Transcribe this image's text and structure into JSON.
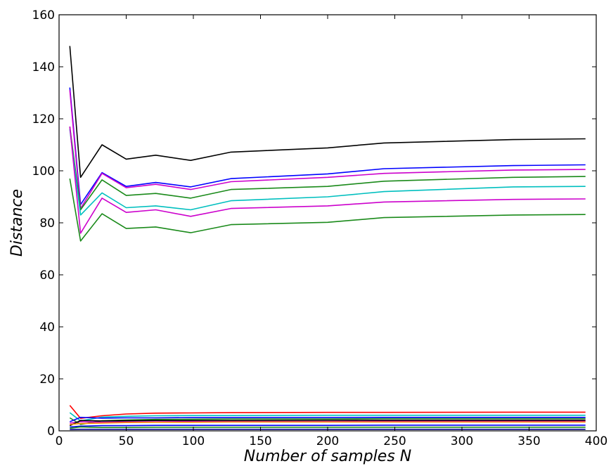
{
  "chart_data": {
    "type": "line",
    "title": "",
    "xlabel": "Number of samples N",
    "ylabel": "Distance",
    "xlim": [
      0,
      400
    ],
    "ylim": [
      0,
      160
    ],
    "xticks": [
      0,
      50,
      100,
      150,
      200,
      250,
      300,
      350,
      400
    ],
    "yticks": [
      0,
      20,
      40,
      60,
      80,
      100,
      120,
      140,
      160
    ],
    "grid": false,
    "legend": "none",
    "x": [
      8,
      16,
      32,
      50,
      72,
      98,
      128,
      200,
      242,
      338,
      392
    ],
    "series": [
      {
        "color": "#000000",
        "values": [
          148.0,
          97.5,
          110.0,
          104.5,
          106.0,
          104.0,
          107.2,
          108.8,
          110.7,
          112.0,
          112.3
        ]
      },
      {
        "color": "#0000ff",
        "values": [
          132.0,
          87.0,
          99.3,
          94.0,
          95.5,
          93.8,
          97.0,
          98.8,
          100.8,
          102.0,
          102.3
        ]
      },
      {
        "color": "#cc00cc",
        "values": [
          131.0,
          85.5,
          99.0,
          93.5,
          94.8,
          92.8,
          95.8,
          97.5,
          99.0,
          100.3,
          100.5
        ]
      },
      {
        "color": "#1a8a1a",
        "values": [
          117.0,
          85.0,
          96.5,
          90.5,
          91.3,
          89.5,
          92.8,
          94.0,
          96.0,
          97.5,
          97.8
        ]
      },
      {
        "color": "#00bfbf",
        "values": [
          116.0,
          83.0,
          91.5,
          85.8,
          86.5,
          85.0,
          88.5,
          90.0,
          92.0,
          93.8,
          94.0
        ]
      },
      {
        "color": "#cc00cc",
        "values": [
          117.0,
          76.0,
          89.5,
          84.0,
          85.0,
          82.5,
          85.5,
          86.5,
          88.0,
          89.0,
          89.2
        ]
      },
      {
        "color": "#1a8a1a",
        "values": [
          97.0,
          73.0,
          83.5,
          77.8,
          78.4,
          76.2,
          79.3,
          80.2,
          82.0,
          83.0,
          83.2
        ]
      },
      {
        "color": "#ff0000",
        "values": [
          9.8,
          4.8,
          5.8,
          6.5,
          6.8,
          6.9,
          7.0,
          7.1,
          7.1,
          7.2,
          7.2
        ]
      },
      {
        "color": "#00bfbf",
        "values": [
          7.0,
          3.8,
          5.3,
          5.6,
          5.8,
          5.9,
          5.9,
          6.0,
          6.0,
          6.0,
          6.0
        ]
      },
      {
        "color": "#1a8a1a",
        "values": [
          5.0,
          2.5,
          3.9,
          4.2,
          4.4,
          4.5,
          4.6,
          4.6,
          4.7,
          4.7,
          4.7
        ]
      },
      {
        "color": "#0000ff",
        "values": [
          3.5,
          5.2,
          4.9,
          5.0,
          5.0,
          5.1,
          5.1,
          5.1,
          5.2,
          5.2,
          5.2
        ]
      },
      {
        "color": "#cc00cc",
        "values": [
          3.0,
          3.5,
          3.3,
          3.5,
          3.5,
          3.6,
          3.6,
          3.6,
          3.7,
          3.7,
          3.7
        ]
      },
      {
        "color": "#000000",
        "values": [
          2.0,
          4.0,
          3.8,
          3.9,
          4.0,
          4.0,
          4.0,
          4.1,
          4.1,
          4.1,
          4.1
        ]
      },
      {
        "color": "#ff8c00",
        "values": [
          2.5,
          2.8,
          3.0,
          3.2,
          3.3,
          3.3,
          3.4,
          3.4,
          3.4,
          3.4,
          3.4
        ]
      },
      {
        "color": "#0000ff",
        "values": [
          1.5,
          1.8,
          2.0,
          2.0,
          2.1,
          2.1,
          2.1,
          2.1,
          2.2,
          2.2,
          2.2
        ]
      },
      {
        "color": "#1a8a1a",
        "values": [
          1.0,
          1.5,
          1.3,
          1.3,
          1.4,
          1.4,
          1.4,
          1.4,
          1.4,
          1.4,
          1.4
        ]
      },
      {
        "color": "#00008b",
        "values": [
          0.5,
          0.6,
          0.6,
          0.6,
          0.6,
          0.6,
          0.6,
          0.6,
          0.6,
          0.6,
          0.6
        ]
      }
    ]
  }
}
